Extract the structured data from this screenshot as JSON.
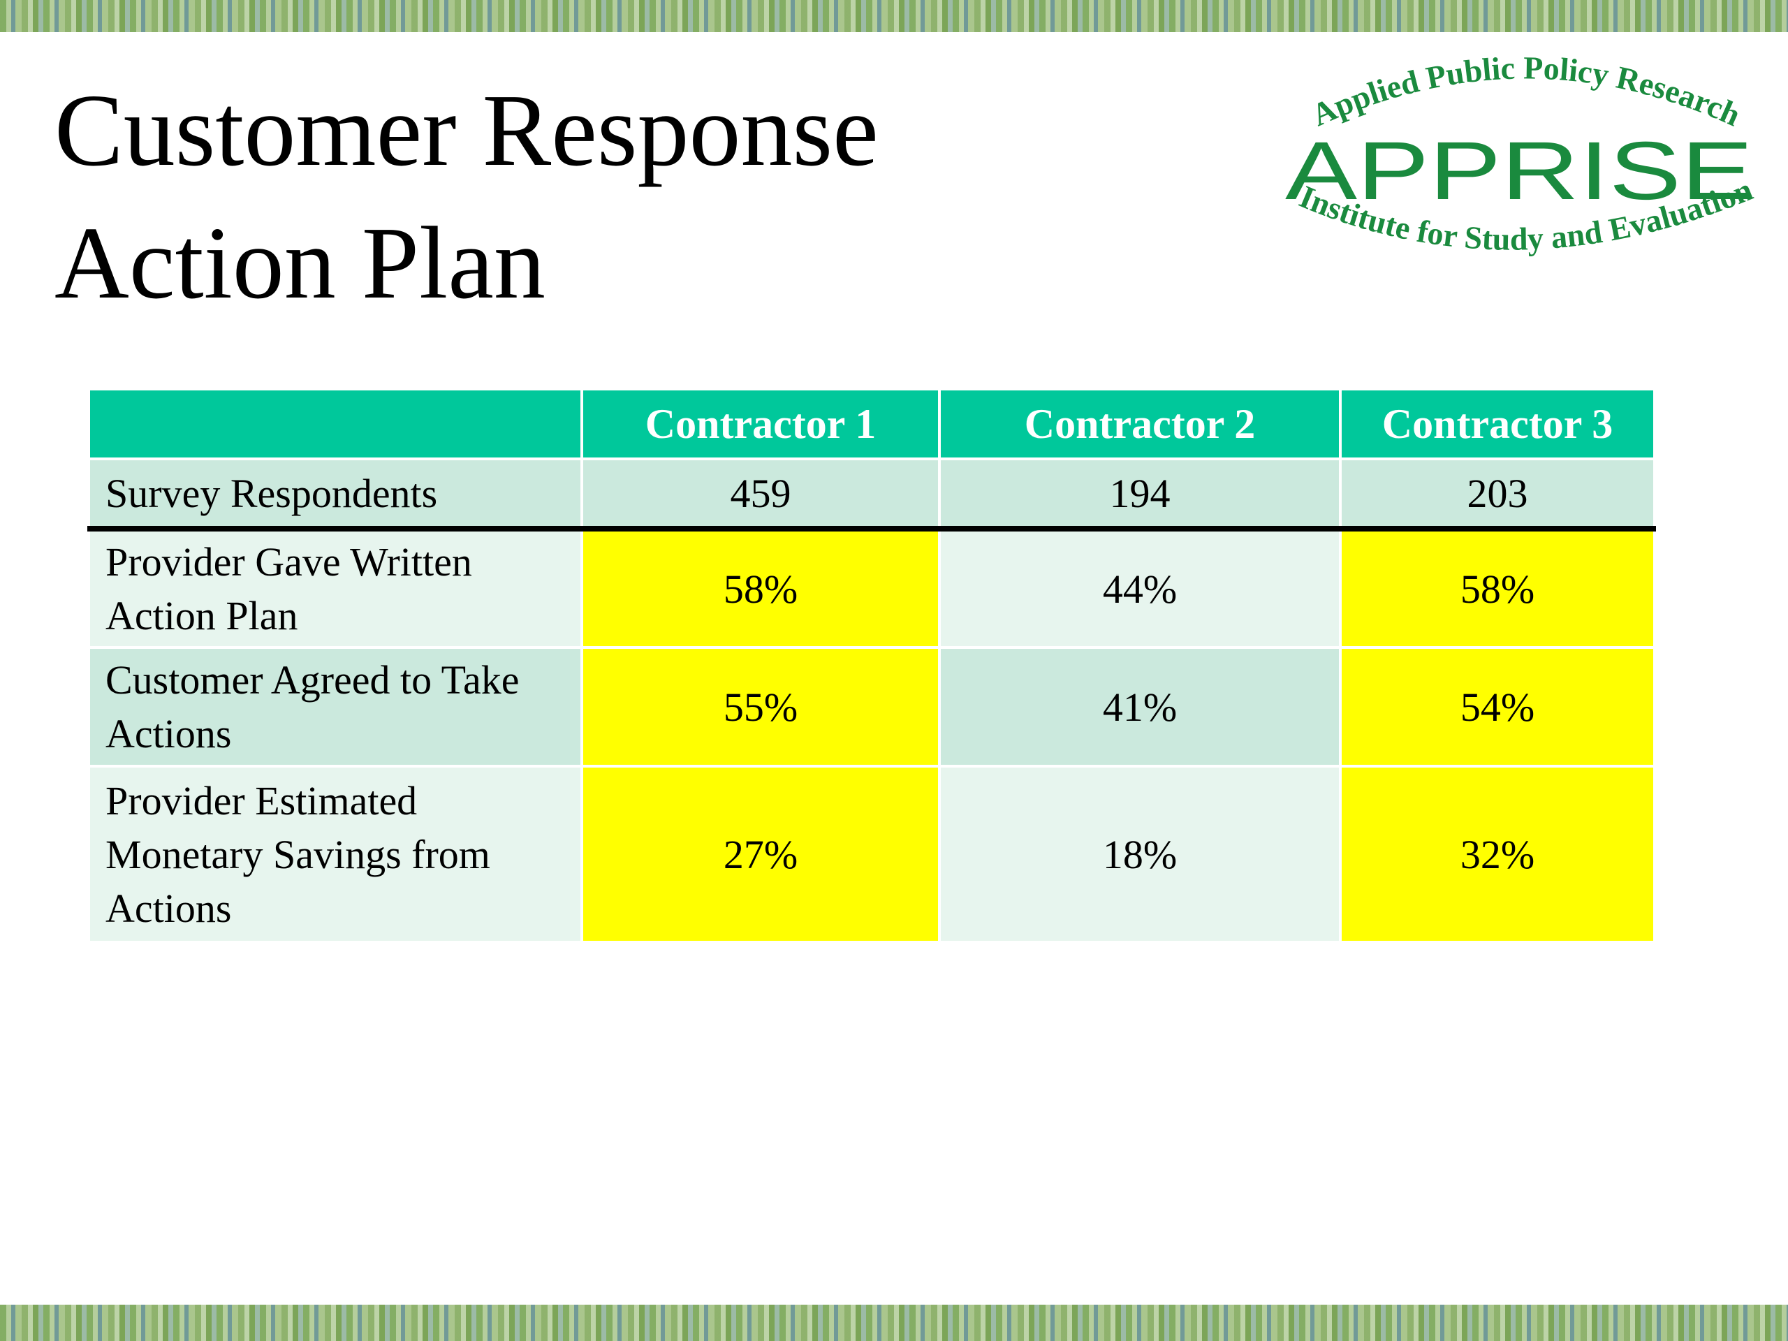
{
  "slide": {
    "title_line1": "Customer Response",
    "title_line2": "Action Plan"
  },
  "logo": {
    "top_text": "Applied Public Policy Research",
    "name": "APPRISE",
    "bottom_text": "Institute for Study and Evaluation",
    "color": "#1a8a3e"
  },
  "table": {
    "columns": [
      "",
      "Contractor 1",
      "Contractor 2",
      "Contractor 3"
    ],
    "rows": [
      {
        "label": "Survey Respondents",
        "values": [
          "459",
          "194",
          "203"
        ]
      },
      {
        "label": "Provider Gave Written Action Plan",
        "values": [
          "58%",
          "44%",
          "58%"
        ]
      },
      {
        "label": "Customer Agreed to Take Actions",
        "values": [
          "55%",
          "41%",
          "54%"
        ]
      },
      {
        "label": "Provider Estimated Monetary Savings from Actions",
        "values": [
          "27%",
          "18%",
          "32%"
        ]
      }
    ],
    "colors": {
      "header": "#00c89b",
      "row_dark": "#cbe9dd",
      "row_light": "#e7f5ee",
      "highlight": "#ffff00"
    }
  }
}
